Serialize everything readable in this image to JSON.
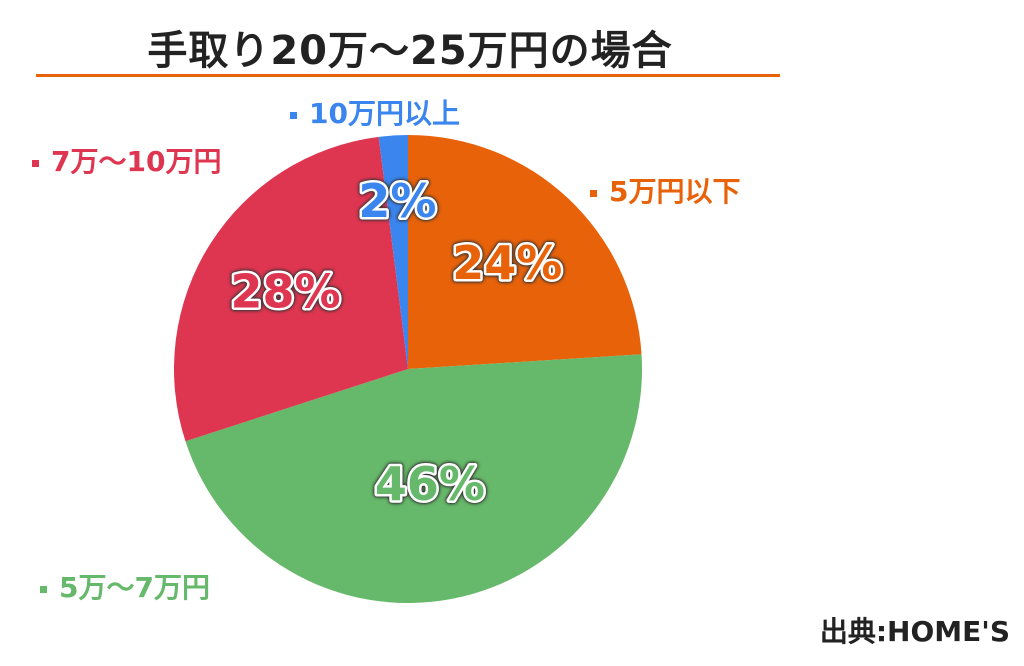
{
  "chart_data": {
    "type": "pie",
    "title": "手取り20万～25万円の場合",
    "start_angle": "top",
    "direction": "clockwise",
    "slices": [
      {
        "label": "5万円以下",
        "value": 24,
        "value_label": "24%",
        "color": "#E8620A"
      },
      {
        "label": "5万～7万円",
        "value": 46,
        "value_label": "46%",
        "color": "#66B86A"
      },
      {
        "label": "7万～10万円",
        "value": 28,
        "value_label": "28%",
        "color": "#DE3650"
      },
      {
        "label": "10万円以上",
        "value": 2,
        "value_label": "2%",
        "color": "#3B85EE"
      }
    ]
  },
  "source": "出典:HOME'S"
}
